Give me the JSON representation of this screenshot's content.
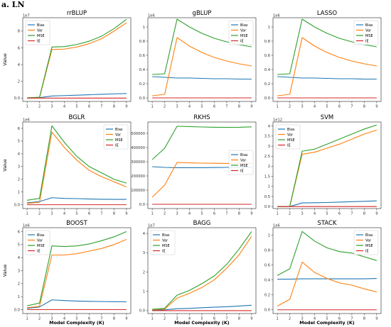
{
  "figure": {
    "title": "a. LN"
  },
  "labels": {
    "y": "Value",
    "x": "Model Complexity (K)"
  },
  "colors": {
    "Bias": "#1f77b4",
    "Var": "#ff7f0e",
    "MSE": "#2ca02c",
    "IE": "#d62728"
  },
  "chart_data": [
    {
      "type": "line",
      "title": "rrBLUP",
      "x": [
        1,
        2,
        3,
        4,
        5,
        6,
        7,
        8,
        9
      ],
      "multiplier": "1e7",
      "ylim": [
        -0.4,
        9.6
      ],
      "yticks": [
        0,
        2,
        4,
        6,
        8
      ],
      "legend_position": "top-left",
      "series": [
        {
          "name": "Bias",
          "values": [
            0.02,
            0.05,
            0.25,
            0.3,
            0.35,
            0.4,
            0.45,
            0.5,
            0.55
          ]
        },
        {
          "name": "Var",
          "values": [
            0.01,
            0.05,
            5.8,
            5.85,
            6.1,
            6.5,
            7.1,
            8.0,
            9.0
          ]
        },
        {
          "name": "MSE",
          "values": [
            0.03,
            0.1,
            6.1,
            6.15,
            6.4,
            6.8,
            7.4,
            8.3,
            9.4
          ]
        },
        {
          "name": "IE",
          "values": [
            0,
            0,
            0,
            0,
            0,
            0,
            0,
            0,
            0
          ]
        }
      ]
    },
    {
      "type": "line",
      "title": "gBLUP",
      "x": [
        1,
        2,
        3,
        4,
        5,
        6,
        7,
        8,
        9
      ],
      "multiplier": "1e6",
      "ylim": [
        -0.05,
        1.13
      ],
      "yticks": [
        0.0,
        0.2,
        0.4,
        0.6,
        0.8,
        1.0
      ],
      "legend_position": "top-right",
      "series": [
        {
          "name": "Bias",
          "values": [
            0.3,
            0.29,
            0.28,
            0.28,
            0.275,
            0.27,
            0.27,
            0.265,
            0.265
          ]
        },
        {
          "name": "Var",
          "values": [
            0.03,
            0.05,
            0.85,
            0.73,
            0.64,
            0.57,
            0.52,
            0.48,
            0.45
          ]
        },
        {
          "name": "MSE",
          "values": [
            0.33,
            0.34,
            1.11,
            1.0,
            0.91,
            0.84,
            0.79,
            0.75,
            0.72
          ]
        },
        {
          "name": "IE",
          "values": [
            0,
            0,
            0,
            0,
            0,
            0,
            0,
            0,
            0
          ]
        }
      ]
    },
    {
      "type": "line",
      "title": "LASSO",
      "x": [
        1,
        2,
        3,
        4,
        5,
        6,
        7,
        8,
        9
      ],
      "multiplier": "1e6",
      "ylim": [
        -0.05,
        1.13
      ],
      "yticks": [
        0.0,
        0.2,
        0.4,
        0.6,
        0.8,
        1.0
      ],
      "legend_position": "top-right",
      "series": [
        {
          "name": "Bias",
          "values": [
            0.3,
            0.29,
            0.28,
            0.28,
            0.275,
            0.27,
            0.27,
            0.265,
            0.265
          ]
        },
        {
          "name": "Var",
          "values": [
            0.03,
            0.05,
            0.85,
            0.73,
            0.64,
            0.57,
            0.52,
            0.48,
            0.45
          ]
        },
        {
          "name": "MSE",
          "values": [
            0.33,
            0.34,
            1.11,
            1.0,
            0.91,
            0.84,
            0.79,
            0.75,
            0.72
          ]
        },
        {
          "name": "IE",
          "values": [
            0,
            0,
            0,
            0,
            0,
            0,
            0,
            0,
            0
          ]
        }
      ]
    },
    {
      "type": "line",
      "title": "BGLR",
      "x": [
        1,
        2,
        3,
        4,
        5,
        6,
        7,
        8,
        9
      ],
      "multiplier": "1e6",
      "ylim": [
        -0.3,
        6.5
      ],
      "yticks": [
        0,
        1,
        2,
        3,
        4,
        5,
        6
      ],
      "legend_position": "top-right",
      "series": [
        {
          "name": "Bias",
          "values": [
            0.15,
            0.25,
            0.55,
            0.5,
            0.48,
            0.45,
            0.43,
            0.42,
            0.42
          ]
        },
        {
          "name": "Var",
          "values": [
            0.1,
            0.2,
            5.7,
            4.5,
            3.5,
            2.7,
            2.2,
            1.8,
            1.4
          ]
        },
        {
          "name": "MSE",
          "values": [
            0.35,
            0.5,
            6.2,
            4.9,
            3.8,
            3.0,
            2.5,
            2.0,
            1.7
          ]
        },
        {
          "name": "IE",
          "values": [
            0,
            0,
            0,
            0,
            0,
            0,
            0,
            0,
            0
          ]
        }
      ]
    },
    {
      "type": "line",
      "title": "RKHS",
      "x": [
        1,
        2,
        3,
        4,
        5,
        6,
        7,
        8,
        9
      ],
      "ylim": [
        -30000,
        580000
      ],
      "yticks": [
        0,
        100000,
        200000,
        300000,
        400000,
        500000
      ],
      "legend_position": "center-right",
      "series": [
        {
          "name": "Bias",
          "values": [
            265000,
            260000,
            258000,
            258000,
            258000,
            259000,
            260000,
            261000,
            262000
          ]
        },
        {
          "name": "Var",
          "values": [
            50000,
            135000,
            295000,
            292000,
            290000,
            289000,
            288000,
            288000,
            288000
          ]
        },
        {
          "name": "MSE",
          "values": [
            315000,
            395000,
            550000,
            548000,
            545000,
            543000,
            542000,
            543000,
            546000
          ]
        },
        {
          "name": "IE",
          "values": [
            0,
            0,
            0,
            0,
            0,
            0,
            0,
            0,
            0
          ]
        }
      ]
    },
    {
      "type": "line",
      "title": "SVM",
      "x": [
        1,
        2,
        3,
        4,
        5,
        6,
        7,
        8,
        9
      ],
      "multiplier": "1e12",
      "ylim": [
        -0.1,
        4.2
      ],
      "yticks": [
        0.0,
        0.5,
        1.0,
        1.5,
        2.0,
        2.5,
        3.0,
        3.5,
        4.0
      ],
      "legend_position": "top-left",
      "series": [
        {
          "name": "Bias",
          "values": [
            0.0,
            0.0,
            0.18,
            0.19,
            0.2,
            0.22,
            0.24,
            0.26,
            0.28
          ]
        },
        {
          "name": "Var",
          "values": [
            0.0,
            0.0,
            2.6,
            2.7,
            2.9,
            3.1,
            3.35,
            3.6,
            3.8
          ]
        },
        {
          "name": "MSE",
          "values": [
            0.0,
            0.0,
            2.75,
            2.85,
            3.1,
            3.35,
            3.6,
            3.85,
            4.05
          ]
        },
        {
          "name": "IE",
          "values": [
            0,
            0,
            0,
            0,
            0,
            0,
            0,
            0,
            0
          ]
        }
      ]
    },
    {
      "type": "line",
      "title": "BOOST",
      "x": [
        1,
        2,
        3,
        4,
        5,
        6,
        7,
        8,
        9
      ],
      "multiplier": "1e6",
      "ylim": [
        -0.3,
        6.3
      ],
      "yticks": [
        0,
        1,
        2,
        3,
        4,
        5,
        6
      ],
      "legend_position": "top-left",
      "series": [
        {
          "name": "Bias",
          "values": [
            0.1,
            0.2,
            0.75,
            0.7,
            0.66,
            0.64,
            0.62,
            0.61,
            0.6
          ]
        },
        {
          "name": "Var",
          "values": [
            0.15,
            0.25,
            4.2,
            4.2,
            4.3,
            4.5,
            4.7,
            5.0,
            5.4
          ]
        },
        {
          "name": "MSE",
          "values": [
            0.3,
            0.5,
            4.9,
            4.85,
            4.9,
            5.05,
            5.3,
            5.6,
            6.0
          ]
        },
        {
          "name": "IE",
          "values": [
            0,
            0,
            0,
            0,
            0,
            0,
            0,
            0,
            0
          ]
        }
      ]
    },
    {
      "type": "line",
      "title": "BAGG",
      "x": [
        1,
        2,
        3,
        4,
        5,
        6,
        7,
        8,
        9
      ],
      "multiplier": "1e7",
      "ylim": [
        -0.15,
        4.3
      ],
      "yticks": [
        0,
        1,
        2,
        3,
        4
      ],
      "legend_position": "top-left",
      "series": [
        {
          "name": "Bias",
          "values": [
            0.02,
            0.04,
            0.1,
            0.12,
            0.15,
            0.18,
            0.2,
            0.24,
            0.28
          ]
        },
        {
          "name": "Var",
          "values": [
            0.05,
            0.08,
            0.65,
            0.9,
            1.2,
            1.6,
            2.2,
            2.9,
            3.85
          ]
        },
        {
          "name": "MSE",
          "values": [
            0.07,
            0.12,
            0.8,
            1.05,
            1.4,
            1.8,
            2.4,
            3.2,
            4.1
          ]
        },
        {
          "name": "IE",
          "values": [
            0,
            0,
            0,
            0,
            0,
            0,
            0,
            0,
            0
          ]
        }
      ]
    },
    {
      "type": "line",
      "title": "STACK",
      "x": [
        1,
        2,
        3,
        4,
        5,
        6,
        7,
        8,
        9
      ],
      "multiplier": "1e6",
      "ylim": [
        -0.05,
        1.1
      ],
      "yticks": [
        0.0,
        0.2,
        0.4,
        0.6,
        0.8,
        1.0
      ],
      "legend_position": "top-right",
      "series": [
        {
          "name": "Bias",
          "values": [
            0.41,
            0.41,
            0.415,
            0.415,
            0.415,
            0.415,
            0.415,
            0.415,
            0.42
          ]
        },
        {
          "name": "Var",
          "values": [
            0.05,
            0.14,
            0.64,
            0.5,
            0.42,
            0.36,
            0.33,
            0.28,
            0.24
          ]
        },
        {
          "name": "MSE",
          "values": [
            0.46,
            0.55,
            1.05,
            0.92,
            0.83,
            0.78,
            0.76,
            0.71,
            0.66
          ]
        },
        {
          "name": "IE",
          "values": [
            0,
            0,
            0,
            0,
            0,
            0,
            0,
            0,
            0
          ]
        }
      ]
    }
  ]
}
